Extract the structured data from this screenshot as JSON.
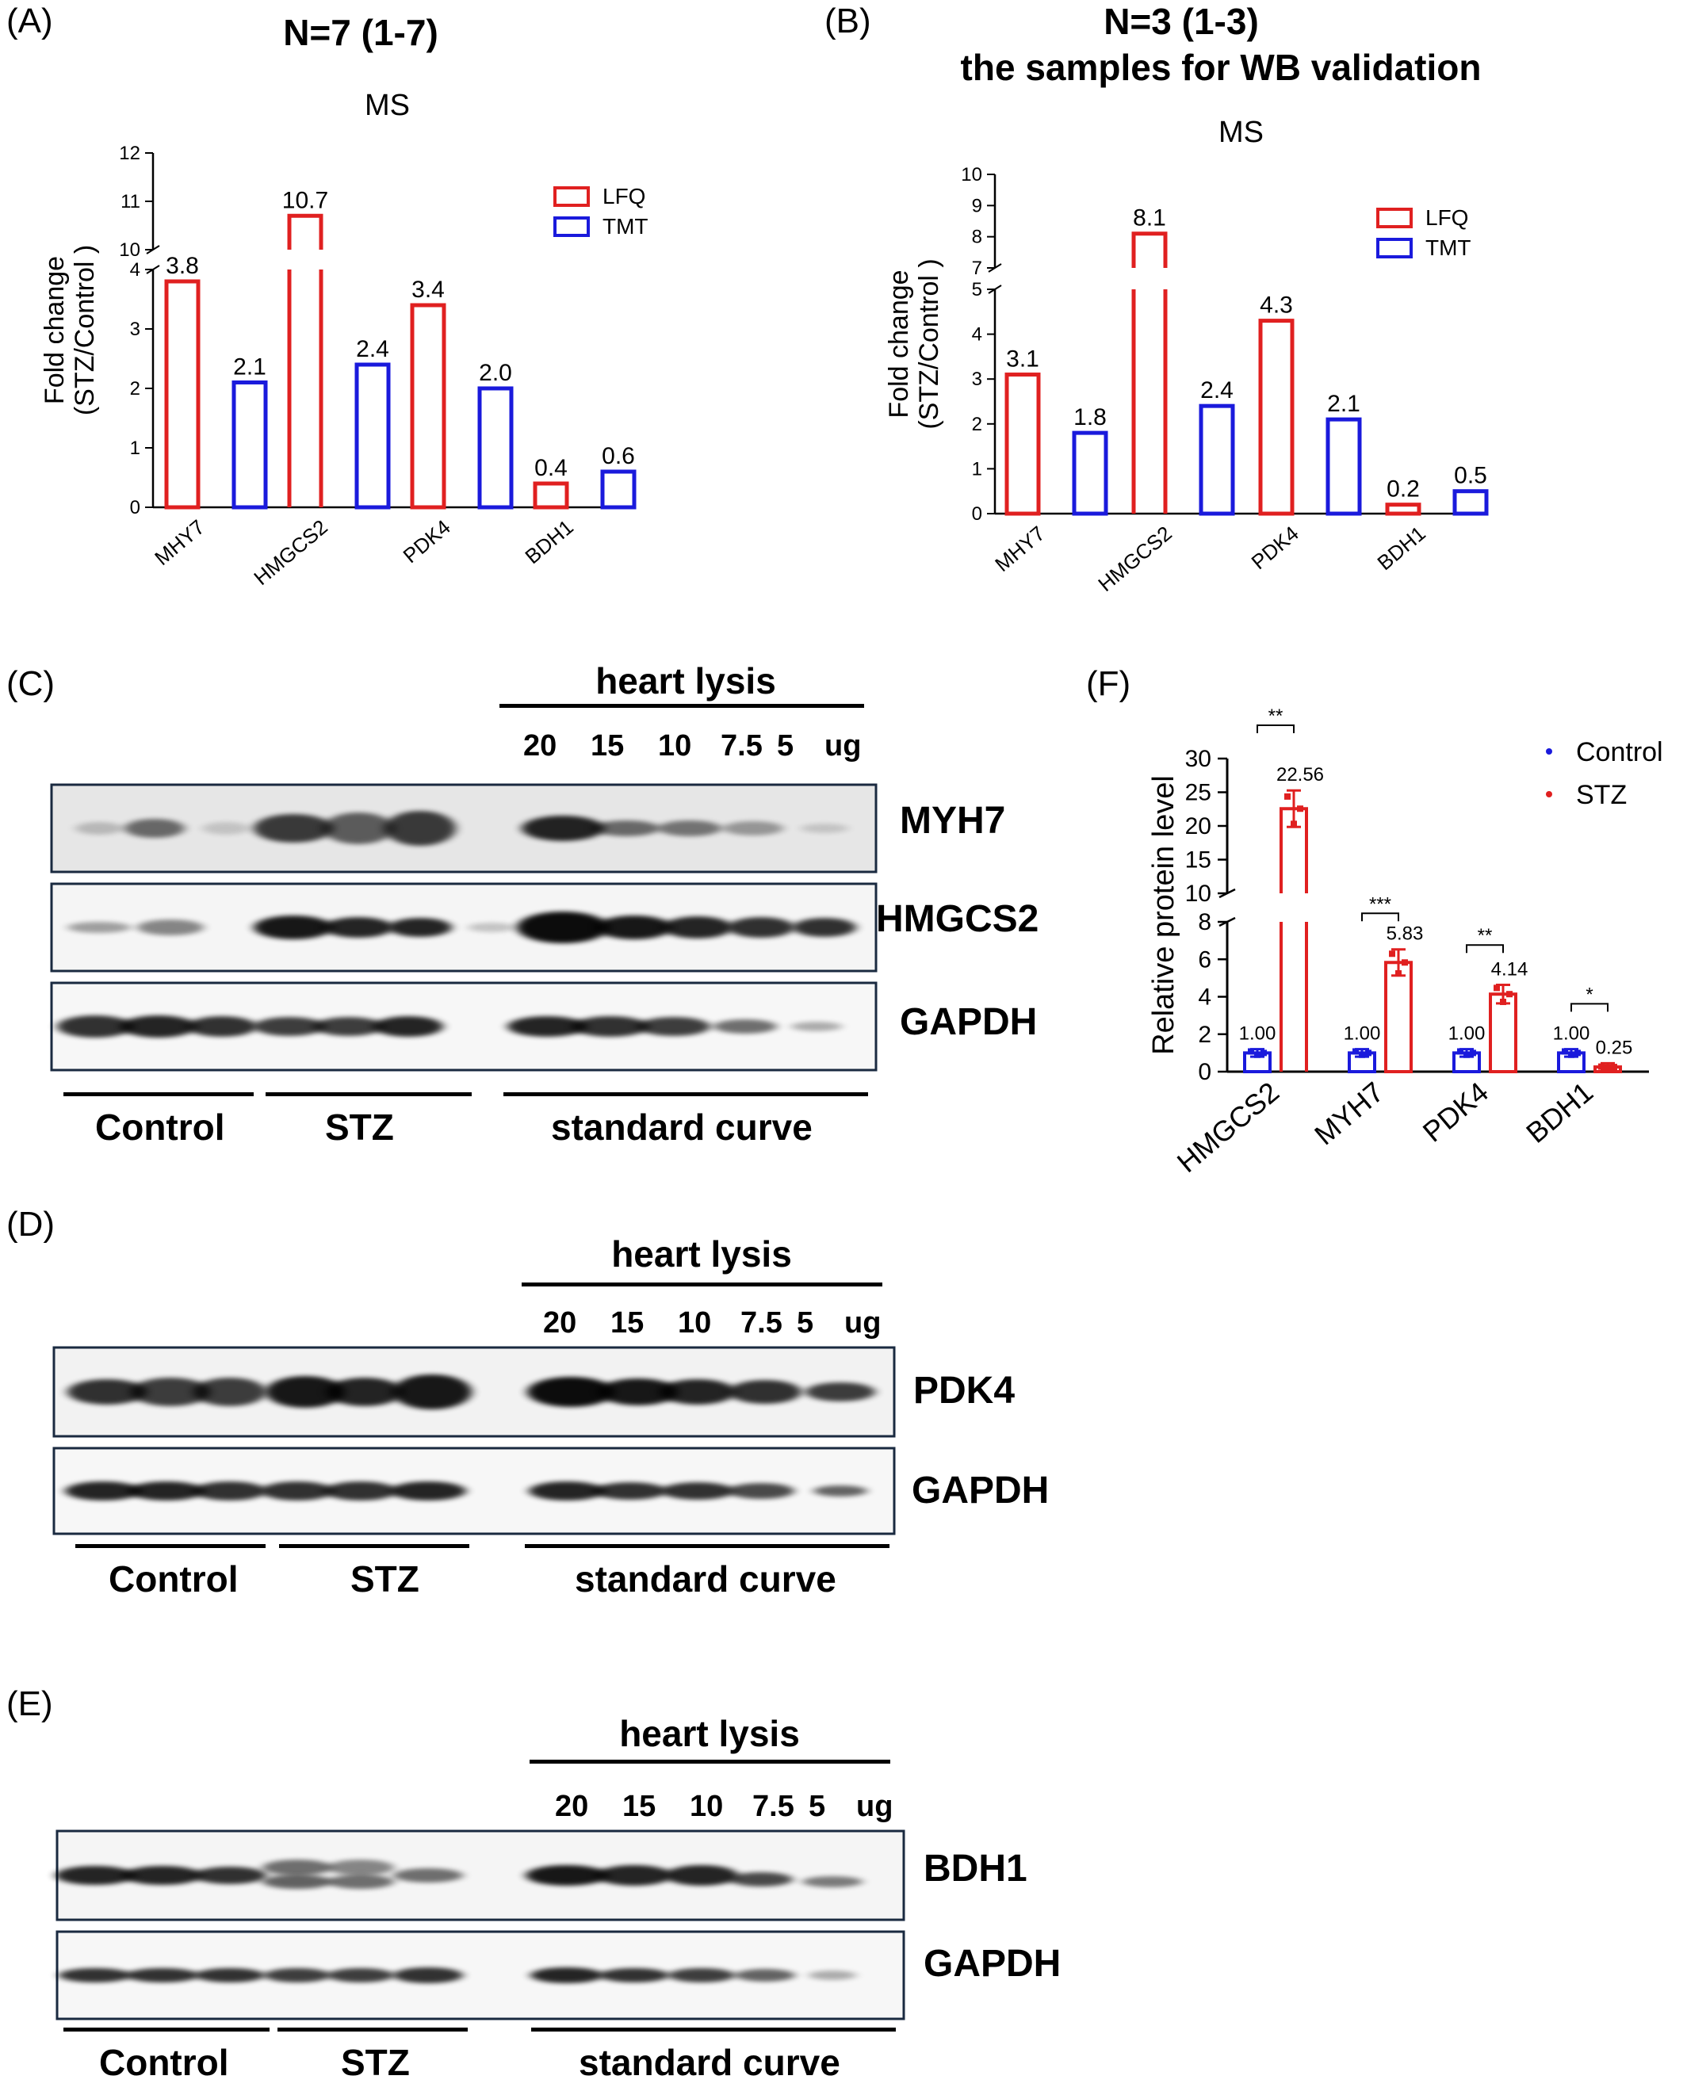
{
  "panels": {
    "A": {
      "label": "(A)",
      "title": "N=7 (1-7)",
      "subtitle": "MS",
      "chart_data": {
        "type": "bar",
        "categories": [
          "MHY7",
          "HMGCS2",
          "PDK4",
          "BDH1"
        ],
        "series": [
          {
            "name": "LFQ",
            "values": [
              3.8,
              10.7,
              3.4,
              0.4
            ],
            "labels": [
              "3.8",
              "10.7",
              "3.4",
              "0.4"
            ]
          },
          {
            "name": "TMT",
            "values": [
              2.1,
              2.4,
              2.0,
              0.6
            ],
            "labels": [
              "2.1",
              "2.4",
              "2.0",
              "0.6"
            ]
          }
        ],
        "ylabel": "Fold change (STZ/Control )",
        "yticks_low": [
          "0",
          "1",
          "2",
          "3",
          "4"
        ],
        "yticks_high": [
          "10",
          "11",
          "12"
        ],
        "ylim": [
          0,
          12
        ],
        "axis_break": [
          4,
          10
        ]
      }
    },
    "B": {
      "label": "(B)",
      "title": "N=3 (1-3)",
      "title2": "the samples for WB validation",
      "subtitle": "MS",
      "chart_data": {
        "type": "bar",
        "categories": [
          "MHY7",
          "HMGCS2",
          "PDK4",
          "BDH1"
        ],
        "series": [
          {
            "name": "LFQ",
            "values": [
              3.1,
              8.1,
              4.3,
              0.2
            ],
            "labels": [
              "3.1",
              "8.1",
              "4.3",
              "0.2"
            ]
          },
          {
            "name": "TMT",
            "values": [
              1.8,
              2.4,
              2.1,
              0.5
            ],
            "labels": [
              "1.8",
              "2.4",
              "2.1",
              "0.5"
            ]
          }
        ],
        "ylabel": "Fold change (STZ/Control )",
        "yticks_low": [
          "0",
          "1",
          "2",
          "3",
          "4",
          "5"
        ],
        "yticks_high": [
          "7",
          "8",
          "9",
          "10"
        ],
        "ylim": [
          0,
          10
        ],
        "axis_break": [
          5,
          7
        ]
      }
    },
    "C": {
      "label": "(C)",
      "header": "heart lysis",
      "lanes": [
        "20",
        "15",
        "10",
        "7.5",
        "5",
        "ug"
      ],
      "blots": [
        "MYH7",
        "HMGCS2",
        "GAPDH"
      ],
      "groups": [
        "Control",
        "STZ",
        "standard curve"
      ]
    },
    "D": {
      "label": "(D)",
      "header": "heart lysis",
      "lanes": [
        "20",
        "15",
        "10",
        "7.5",
        "5",
        "ug"
      ],
      "blots": [
        "PDK4",
        "GAPDH"
      ],
      "groups": [
        "Control",
        "STZ",
        "standard curve"
      ]
    },
    "E": {
      "label": "(E)",
      "header": "heart lysis",
      "lanes": [
        "20",
        "15",
        "10",
        "7.5",
        "5",
        "ug"
      ],
      "blots": [
        "BDH1",
        "GAPDH"
      ],
      "groups": [
        "Control",
        "STZ",
        "standard curve"
      ]
    },
    "F": {
      "label": "(F)",
      "chart_data": {
        "type": "bar",
        "categories": [
          "HMGCS2",
          "MYH7",
          "PDK4",
          "BDH1"
        ],
        "series": [
          {
            "name": "Control",
            "values": [
              1.0,
              1.0,
              1.0,
              1.0
            ],
            "labels": [
              "1.00",
              "1.00",
              "1.00",
              "1.00"
            ],
            "color": "#1a1adc"
          },
          {
            "name": "STZ",
            "values": [
              22.56,
              5.83,
              4.14,
              0.25
            ],
            "labels": [
              "22.56",
              "5.83",
              "4.14",
              "0.25"
            ],
            "color": "#e02020"
          }
        ],
        "significance": [
          "**",
          "***",
          "**",
          "*"
        ],
        "ylabel": "Relative protein level",
        "yticks_low": [
          "0",
          "2",
          "4",
          "6",
          "8"
        ],
        "yticks_high": [
          "10",
          "15",
          "20",
          "25",
          "30"
        ],
        "ylim": [
          0,
          30
        ],
        "axis_break": [
          8,
          10
        ]
      }
    }
  },
  "colors": {
    "lfq": "#e02020",
    "tmt": "#1a1adc",
    "control": "#1a1adc",
    "stz": "#e02020"
  }
}
